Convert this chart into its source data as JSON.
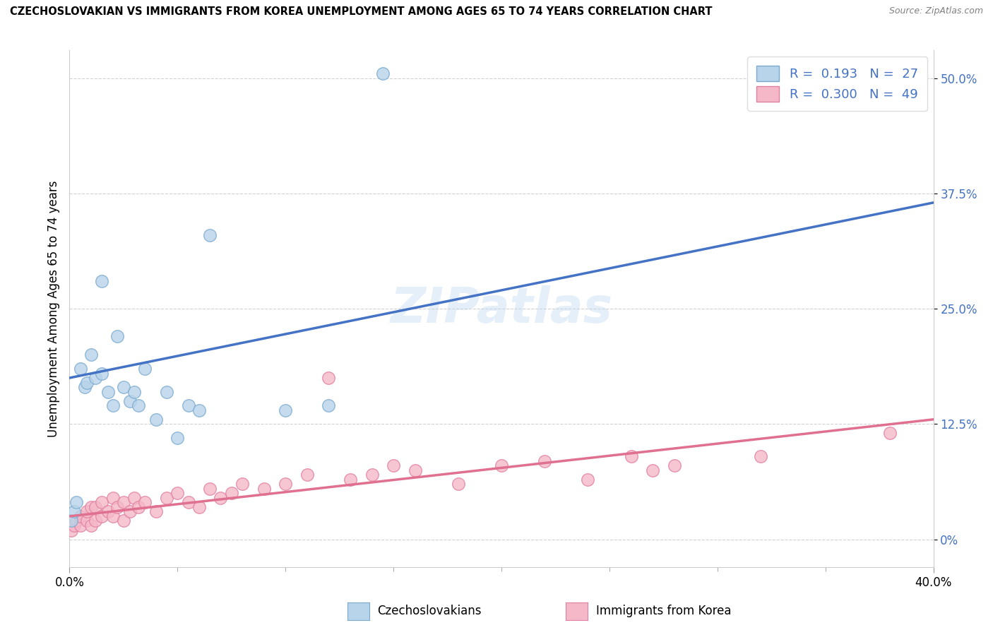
{
  "title": "CZECHOSLOVAKIAN VS IMMIGRANTS FROM KOREA UNEMPLOYMENT AMONG AGES 65 TO 74 YEARS CORRELATION CHART",
  "source": "Source: ZipAtlas.com",
  "ylabel": "Unemployment Among Ages 65 to 74 years",
  "xlim": [
    0.0,
    40.0
  ],
  "ylim": [
    -3.0,
    53.0
  ],
  "yticks": [
    0.0,
    12.5,
    25.0,
    37.5,
    50.0
  ],
  "ytick_labels": [
    "0%",
    "12.5%",
    "25.0%",
    "37.5%",
    "50.0%"
  ],
  "xtick_left_label": "0.0%",
  "xtick_right_label": "40.0%",
  "blue_color": "#b8d4ea",
  "blue_edge_color": "#7aaad0",
  "blue_line_color": "#4472c4",
  "pink_color": "#f5b8c8",
  "pink_edge_color": "#e080a0",
  "pink_line_color": "#e07090",
  "label1": "Czechoslovakians",
  "label2": "Immigrants from Korea",
  "legend_r1": "0.193",
  "legend_n1": "27",
  "legend_r2": "0.300",
  "legend_n2": "49",
  "watermark": "ZIPatlas",
  "blue_scatter_x": [
    0.1,
    0.2,
    0.3,
    0.5,
    0.7,
    0.8,
    1.0,
    1.2,
    1.5,
    1.5,
    1.8,
    2.0,
    2.2,
    2.5,
    2.8,
    3.0,
    3.2,
    3.5,
    4.0,
    4.5,
    5.0,
    5.5,
    6.0,
    6.5,
    10.0,
    12.0,
    14.5
  ],
  "blue_scatter_y": [
    2.0,
    3.0,
    4.0,
    18.5,
    16.5,
    17.0,
    20.0,
    17.5,
    18.0,
    28.0,
    16.0,
    14.5,
    22.0,
    16.5,
    15.0,
    16.0,
    14.5,
    18.5,
    13.0,
    16.0,
    11.0,
    14.5,
    14.0,
    33.0,
    14.0,
    14.5,
    50.5
  ],
  "pink_scatter_x": [
    0.1,
    0.2,
    0.3,
    0.5,
    0.5,
    0.8,
    0.8,
    1.0,
    1.0,
    1.2,
    1.2,
    1.5,
    1.5,
    1.8,
    2.0,
    2.0,
    2.2,
    2.5,
    2.5,
    2.8,
    3.0,
    3.2,
    3.5,
    4.0,
    4.5,
    5.0,
    5.5,
    6.0,
    6.5,
    7.0,
    7.5,
    8.0,
    9.0,
    10.0,
    11.0,
    12.0,
    13.0,
    14.0,
    15.0,
    16.0,
    18.0,
    20.0,
    22.0,
    24.0,
    26.0,
    27.0,
    28.0,
    32.0,
    38.0
  ],
  "pink_scatter_y": [
    1.0,
    1.5,
    2.0,
    1.5,
    2.5,
    2.0,
    3.0,
    1.5,
    3.5,
    2.0,
    3.5,
    2.5,
    4.0,
    3.0,
    2.5,
    4.5,
    3.5,
    2.0,
    4.0,
    3.0,
    4.5,
    3.5,
    4.0,
    3.0,
    4.5,
    5.0,
    4.0,
    3.5,
    5.5,
    4.5,
    5.0,
    6.0,
    5.5,
    6.0,
    7.0,
    17.5,
    6.5,
    7.0,
    8.0,
    7.5,
    6.0,
    8.0,
    8.5,
    6.5,
    9.0,
    7.5,
    8.0,
    9.0,
    11.5
  ],
  "blue_trend_x0": 0.0,
  "blue_trend_y0": 17.5,
  "blue_trend_x1": 40.0,
  "blue_trend_y1": 36.5,
  "pink_trend_x0": 0.0,
  "pink_trend_y0": 2.5,
  "pink_trend_x1": 40.0,
  "pink_trend_y1": 13.0
}
